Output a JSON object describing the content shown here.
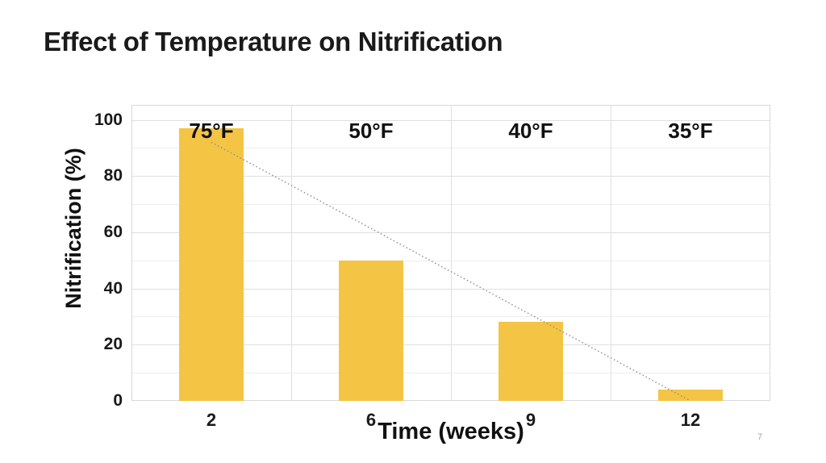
{
  "slide": {
    "page_number": "7"
  },
  "chart_data": {
    "type": "bar",
    "title": "Effect of Temperature on Nitrification",
    "xlabel": "Time (weeks)",
    "ylabel": "Nitrification (%)",
    "categories": [
      "2",
      "6",
      "9",
      "12"
    ],
    "values": [
      97,
      50,
      28,
      4
    ],
    "bar_labels": [
      "75°F",
      "50°F",
      "40°F",
      "35°F"
    ],
    "ylim": [
      0,
      100
    ],
    "yticks": [
      0,
      20,
      40,
      60,
      80,
      100
    ],
    "minor_grid_step": 10,
    "grid": true,
    "legend": "none",
    "trendline": {
      "style": "dotted",
      "from": {
        "category_index": 0,
        "value": 92
      },
      "to": {
        "category_index": 3,
        "value": 0
      }
    },
    "colors": {
      "bar": "#F4C445",
      "trendline": "#8C8C8C",
      "gridline_major": "#E0E0E0",
      "gridline_minor": "#EDEDED",
      "plot_border": "#D9D9D9",
      "text": "#1A1A1A",
      "page_number": "#A6A6A6"
    }
  }
}
